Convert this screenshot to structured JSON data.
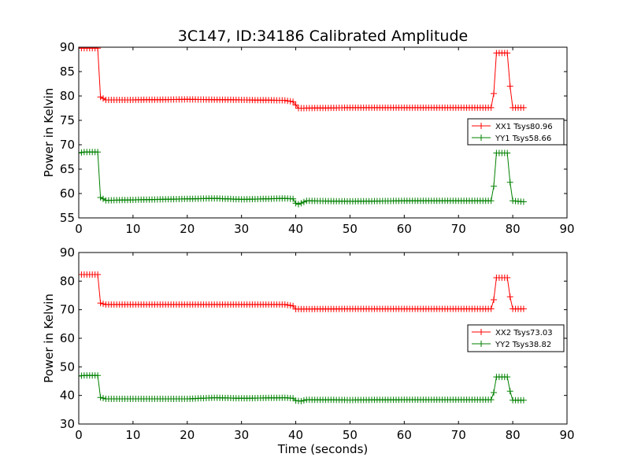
{
  "title": "3C147, ID:34186 Calibrated Amplitude",
  "chart_data": [
    {
      "type": "line",
      "ylabel": "Power in Kelvin",
      "xlabel": "",
      "xlim": [
        0,
        90
      ],
      "ylim": [
        55,
        90
      ],
      "xticks": [
        "0",
        "10",
        "20",
        "30",
        "40",
        "50",
        "60",
        "70",
        "80",
        "90"
      ],
      "yticks": [
        "55",
        "60",
        "65",
        "70",
        "75",
        "80",
        "85",
        "90"
      ],
      "legend_position": "center-right",
      "series": [
        {
          "name": "XX1 Tsys80.96",
          "color": "#ff0000",
          "x": [
            0,
            1,
            2,
            3,
            3.5,
            4,
            5,
            10,
            20,
            30,
            38,
            39.5,
            40.5,
            41,
            50,
            60,
            70,
            75,
            76,
            76.5,
            77,
            79,
            79.5,
            80,
            82
          ],
          "y": [
            89.8,
            89.8,
            89.8,
            89.8,
            89.8,
            79.8,
            79.2,
            79.2,
            79.3,
            79.2,
            79.1,
            78.8,
            77.5,
            77.5,
            77.6,
            77.6,
            77.6,
            77.6,
            77.6,
            80.5,
            88.8,
            88.8,
            82,
            77.6,
            77.6
          ]
        },
        {
          "name": "YY1 Tsys58.66",
          "color": "#008000",
          "x": [
            0,
            1,
            2,
            3,
            3.5,
            4,
            5,
            10,
            20,
            25,
            30,
            38,
            39.5,
            40,
            40.5,
            42,
            50,
            60,
            70,
            75,
            76,
            76.5,
            77,
            79,
            79.5,
            80,
            82
          ],
          "y": [
            68.3,
            68.5,
            68.5,
            68.5,
            68.5,
            59.2,
            58.6,
            58.7,
            58.9,
            59.0,
            58.8,
            59.0,
            58.9,
            58.0,
            57.8,
            58.5,
            58.4,
            58.5,
            58.5,
            58.5,
            58.5,
            61.5,
            68.3,
            68.3,
            62.3,
            58.5,
            58.3
          ]
        }
      ]
    },
    {
      "type": "line",
      "ylabel": "Power in Kelvin",
      "xlabel": "Time (seconds)",
      "xlim": [
        0,
        90
      ],
      "ylim": [
        30,
        90
      ],
      "xticks": [
        "0",
        "10",
        "20",
        "30",
        "40",
        "50",
        "60",
        "70",
        "80",
        "90"
      ],
      "yticks": [
        "30",
        "40",
        "50",
        "60",
        "70",
        "80",
        "90"
      ],
      "legend_position": "center-right",
      "series": [
        {
          "name": "XX2 Tsys73.03",
          "color": "#ff0000",
          "x": [
            0,
            1,
            2,
            3,
            3.5,
            4,
            5,
            10,
            20,
            30,
            38,
            39.5,
            40,
            41,
            50,
            60,
            70,
            75,
            76,
            76.5,
            77,
            79,
            79.5,
            80,
            82
          ],
          "y": [
            82.3,
            82.3,
            82.3,
            82.3,
            82.3,
            72.3,
            71.8,
            71.8,
            71.8,
            71.8,
            71.8,
            71.3,
            70.2,
            70.2,
            70.3,
            70.3,
            70.3,
            70.3,
            70.3,
            73.5,
            81.2,
            81.2,
            74.5,
            70.3,
            70.3
          ]
        },
        {
          "name": "YY2 Tsys38.82",
          "color": "#008000",
          "x": [
            0,
            1,
            2,
            3,
            3.5,
            4,
            5,
            10,
            20,
            25,
            30,
            38,
            39.5,
            40,
            41,
            42,
            50,
            60,
            70,
            75,
            76,
            76.5,
            77,
            79,
            79.5,
            80,
            82
          ],
          "y": [
            46.8,
            47.0,
            47.0,
            47.0,
            47.0,
            39.3,
            38.8,
            38.8,
            38.8,
            39.2,
            39.0,
            39.2,
            39.0,
            38.2,
            38.0,
            38.5,
            38.4,
            38.5,
            38.5,
            38.5,
            38.5,
            41.0,
            46.5,
            46.5,
            41.5,
            38.3,
            38.3
          ]
        }
      ]
    }
  ]
}
